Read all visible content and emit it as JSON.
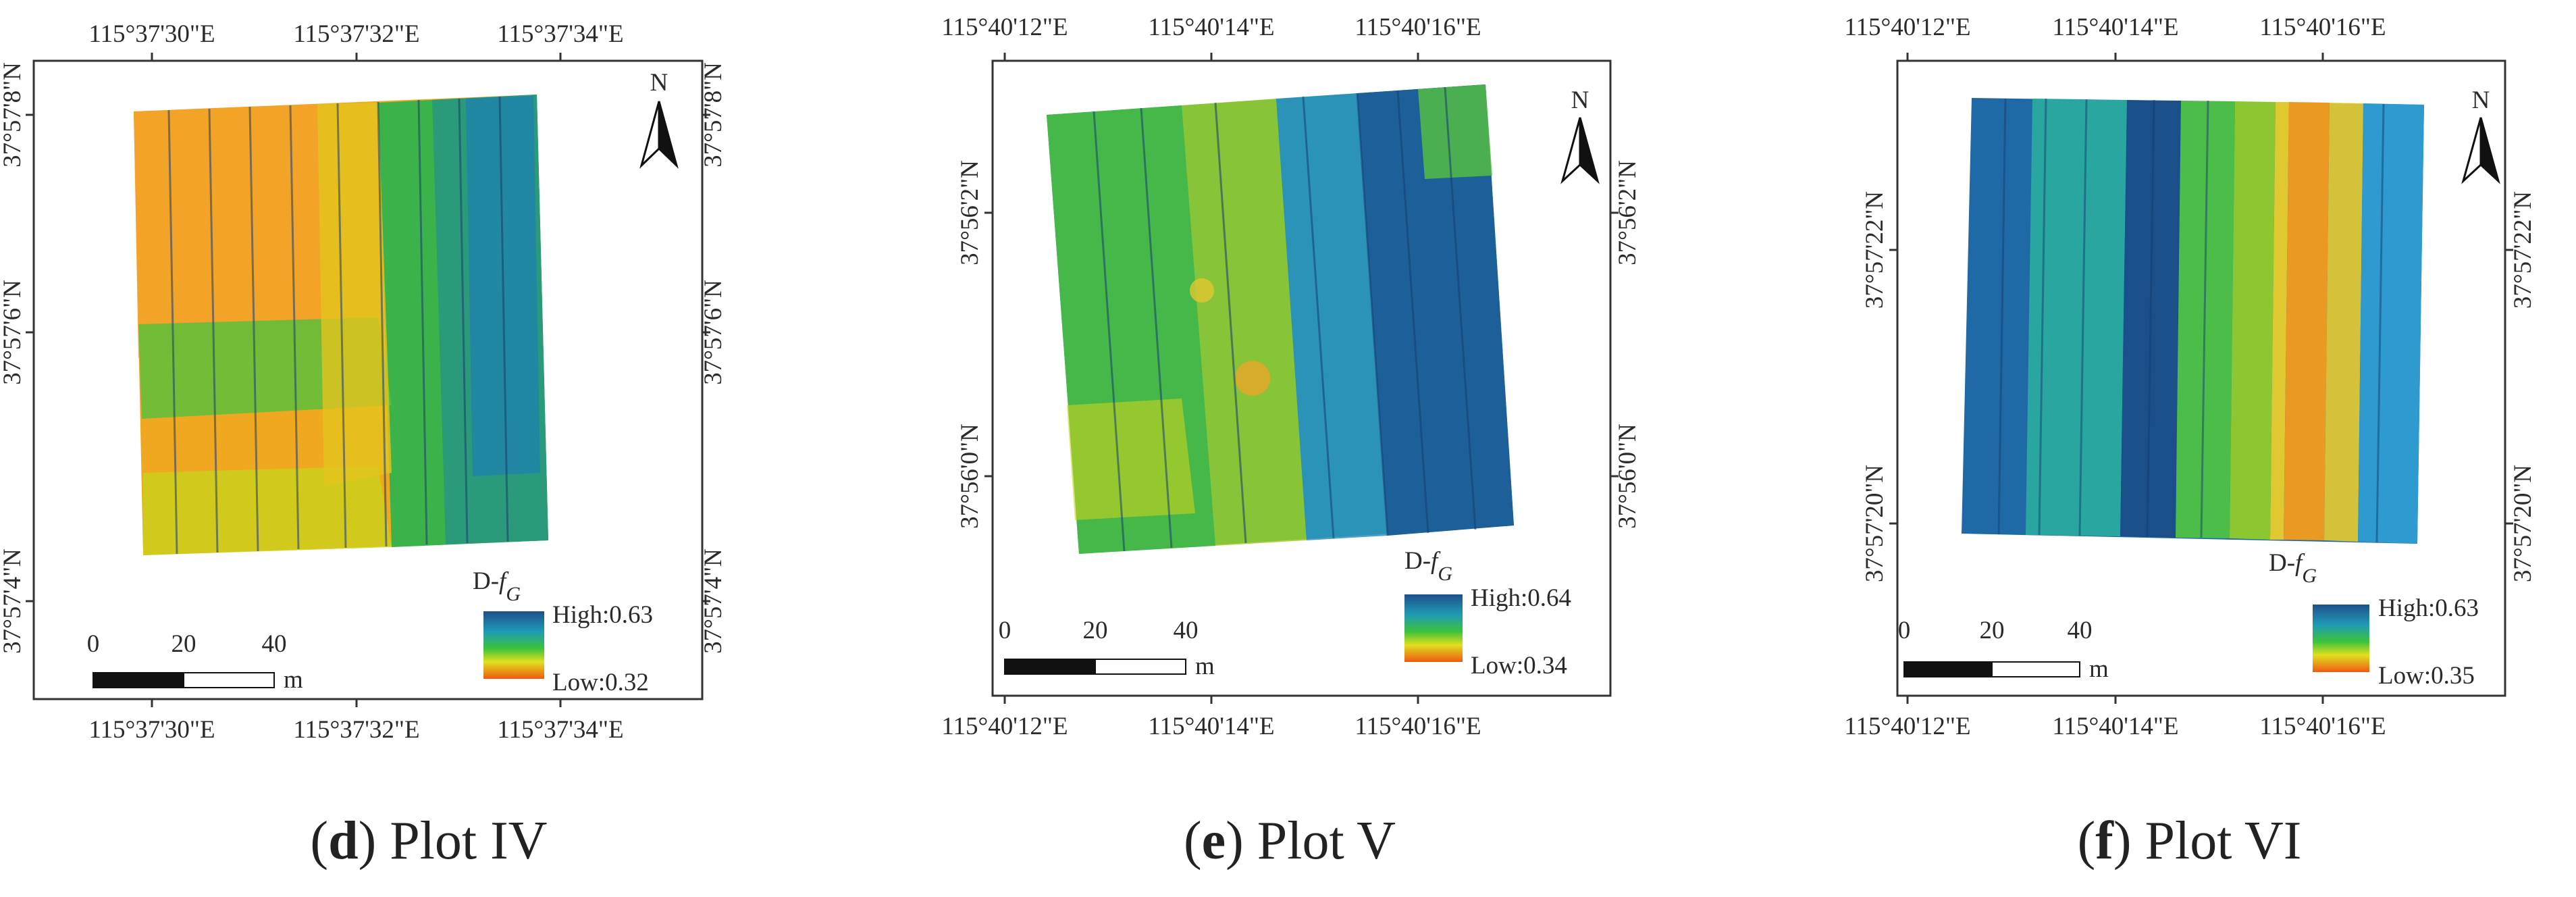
{
  "panels": [
    {
      "letter": "d",
      "title": "Plot IV",
      "top_ticks": [
        "115°37'30\"E",
        "115°37'32\"E",
        "115°37'34\"E"
      ],
      "bottom_ticks": [
        "115°37'30\"E",
        "115°37'32\"E",
        "115°37'34\"E"
      ],
      "left_ticks": [
        "37°57'8\"N",
        "37°57'6\"N",
        "37°57'4\"N"
      ],
      "right_ticks": [
        "37°57'8\"N",
        "37°57'6\"N",
        "37°57'4\"N"
      ],
      "north": "N",
      "legend": {
        "var": "D-",
        "sym": "f",
        "sub": "G",
        "high": "High:0.63",
        "low": "Low:0.32"
      },
      "scale": {
        "labels": [
          "0",
          "20",
          "40"
        ],
        "unit": "m"
      },
      "raster": {
        "base": "#f0a820",
        "stripes": [
          "#2e9ad0",
          "#1a7fb8",
          "#2fb36a",
          "#c9d21c",
          "#1a5f9e"
        ]
      }
    },
    {
      "letter": "e",
      "title": "Plot V",
      "top_ticks": [
        "115°40'12\"E",
        "115°40'14\"E",
        "115°40'16\"E"
      ],
      "bottom_ticks": [
        "115°40'12\"E",
        "115°40'14\"E",
        "115°40'16\"E"
      ],
      "left_ticks": [
        "37°56'2\"N",
        "37°56'0\"N"
      ],
      "right_ticks": [
        "37°56'2\"N",
        "37°56'0\"N"
      ],
      "north": "N",
      "legend": {
        "var": "D-",
        "sym": "f",
        "sub": "G",
        "high": "High:0.64",
        "low": "Low:0.34"
      },
      "scale": {
        "labels": [
          "0",
          "20",
          "40"
        ],
        "unit": "m"
      },
      "raster": {
        "base": "#2aa86a",
        "stripes": [
          "#1f6ea8",
          "#b9cf27",
          "#2b8fc6",
          "#1a4f8a",
          "#e0b228"
        ]
      }
    },
    {
      "letter": "f",
      "title": "Plot VI",
      "top_ticks": [
        "115°40'12\"E",
        "115°40'14\"E",
        "115°40'16\"E"
      ],
      "bottom_ticks": [
        "115°40'12\"E",
        "115°40'14\"E",
        "115°40'16\"E"
      ],
      "left_ticks": [
        "37°57'22\"N",
        "37°57'20\"N"
      ],
      "right_ticks": [
        "37°57'22\"N",
        "37°57'20\"N"
      ],
      "north": "N",
      "legend": {
        "var": "D-",
        "sym": "f",
        "sub": "G",
        "high": "High:0.63",
        "low": "Low:0.35"
      },
      "scale": {
        "labels": [
          "0",
          "20",
          "40"
        ],
        "unit": "m"
      },
      "raster": {
        "base": "#1f6aa6",
        "stripes": [
          "#2aa6a0",
          "#58c23e",
          "#1a4f8a",
          "#2e9ad0",
          "#e8a828"
        ]
      }
    }
  ]
}
